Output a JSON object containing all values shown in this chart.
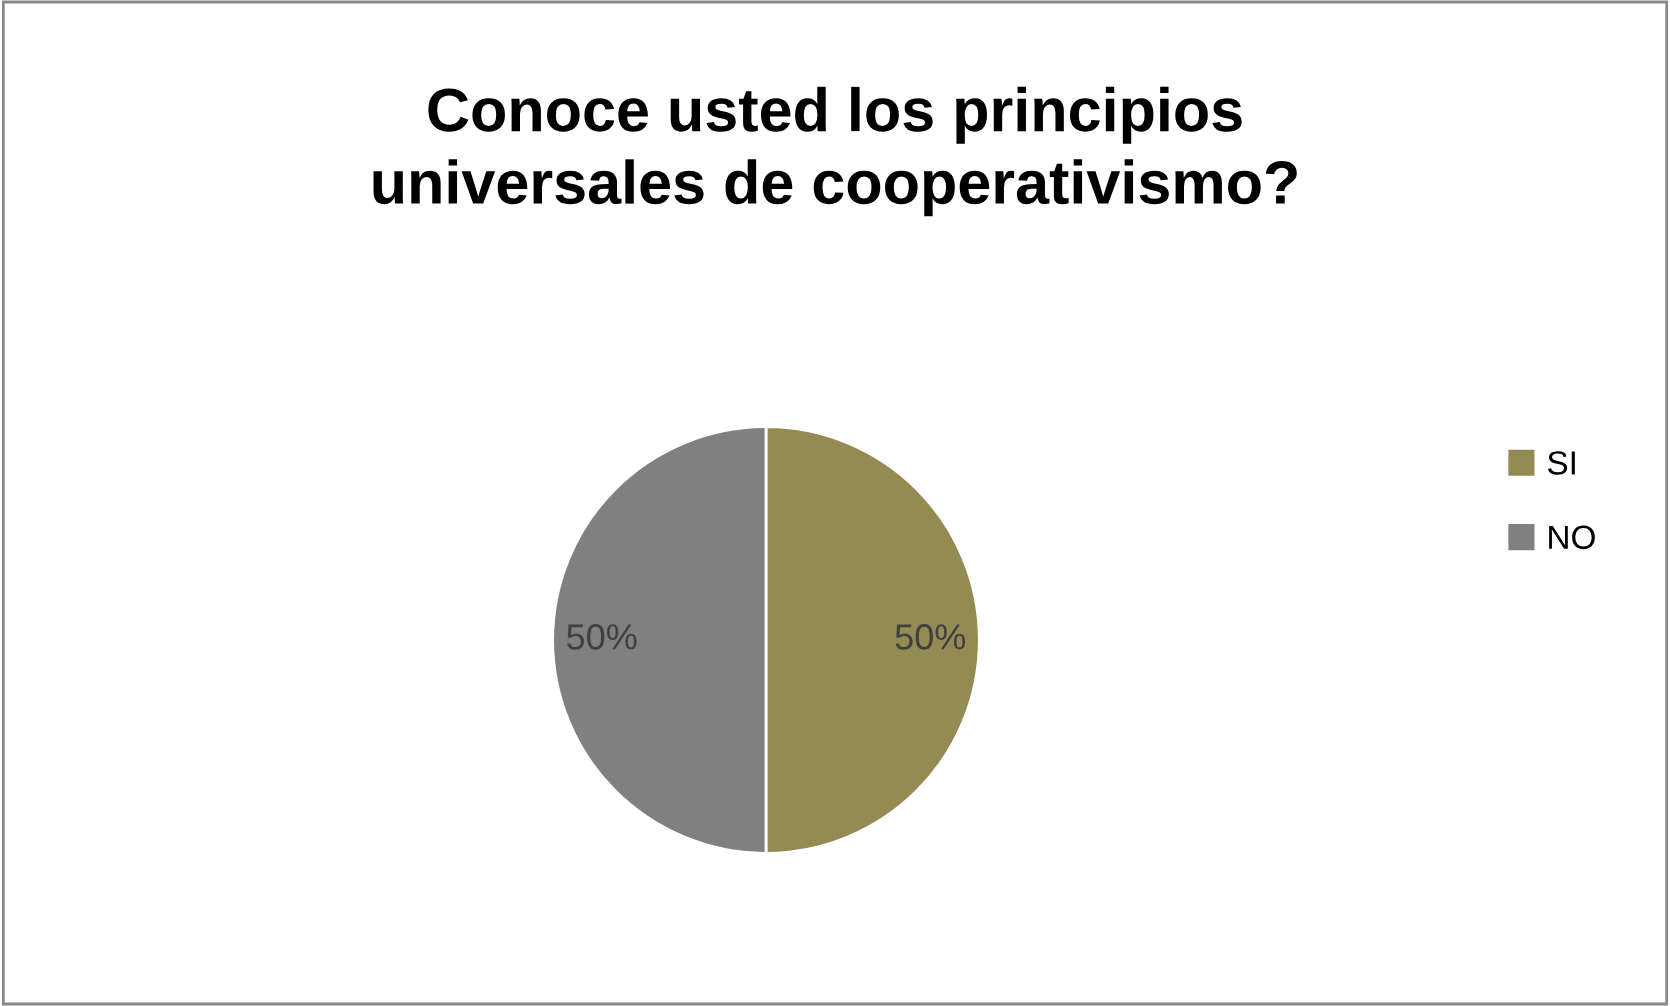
{
  "chart_data": {
    "type": "pie",
    "title": "Conoce usted los principios\nuniversales de cooperativismo?",
    "categories": [
      "SI",
      "NO"
    ],
    "values": [
      50,
      50
    ],
    "colors": [
      "#948a54",
      "#808080"
    ],
    "value_labels": [
      "50%",
      "50%"
    ],
    "legend": "right"
  }
}
